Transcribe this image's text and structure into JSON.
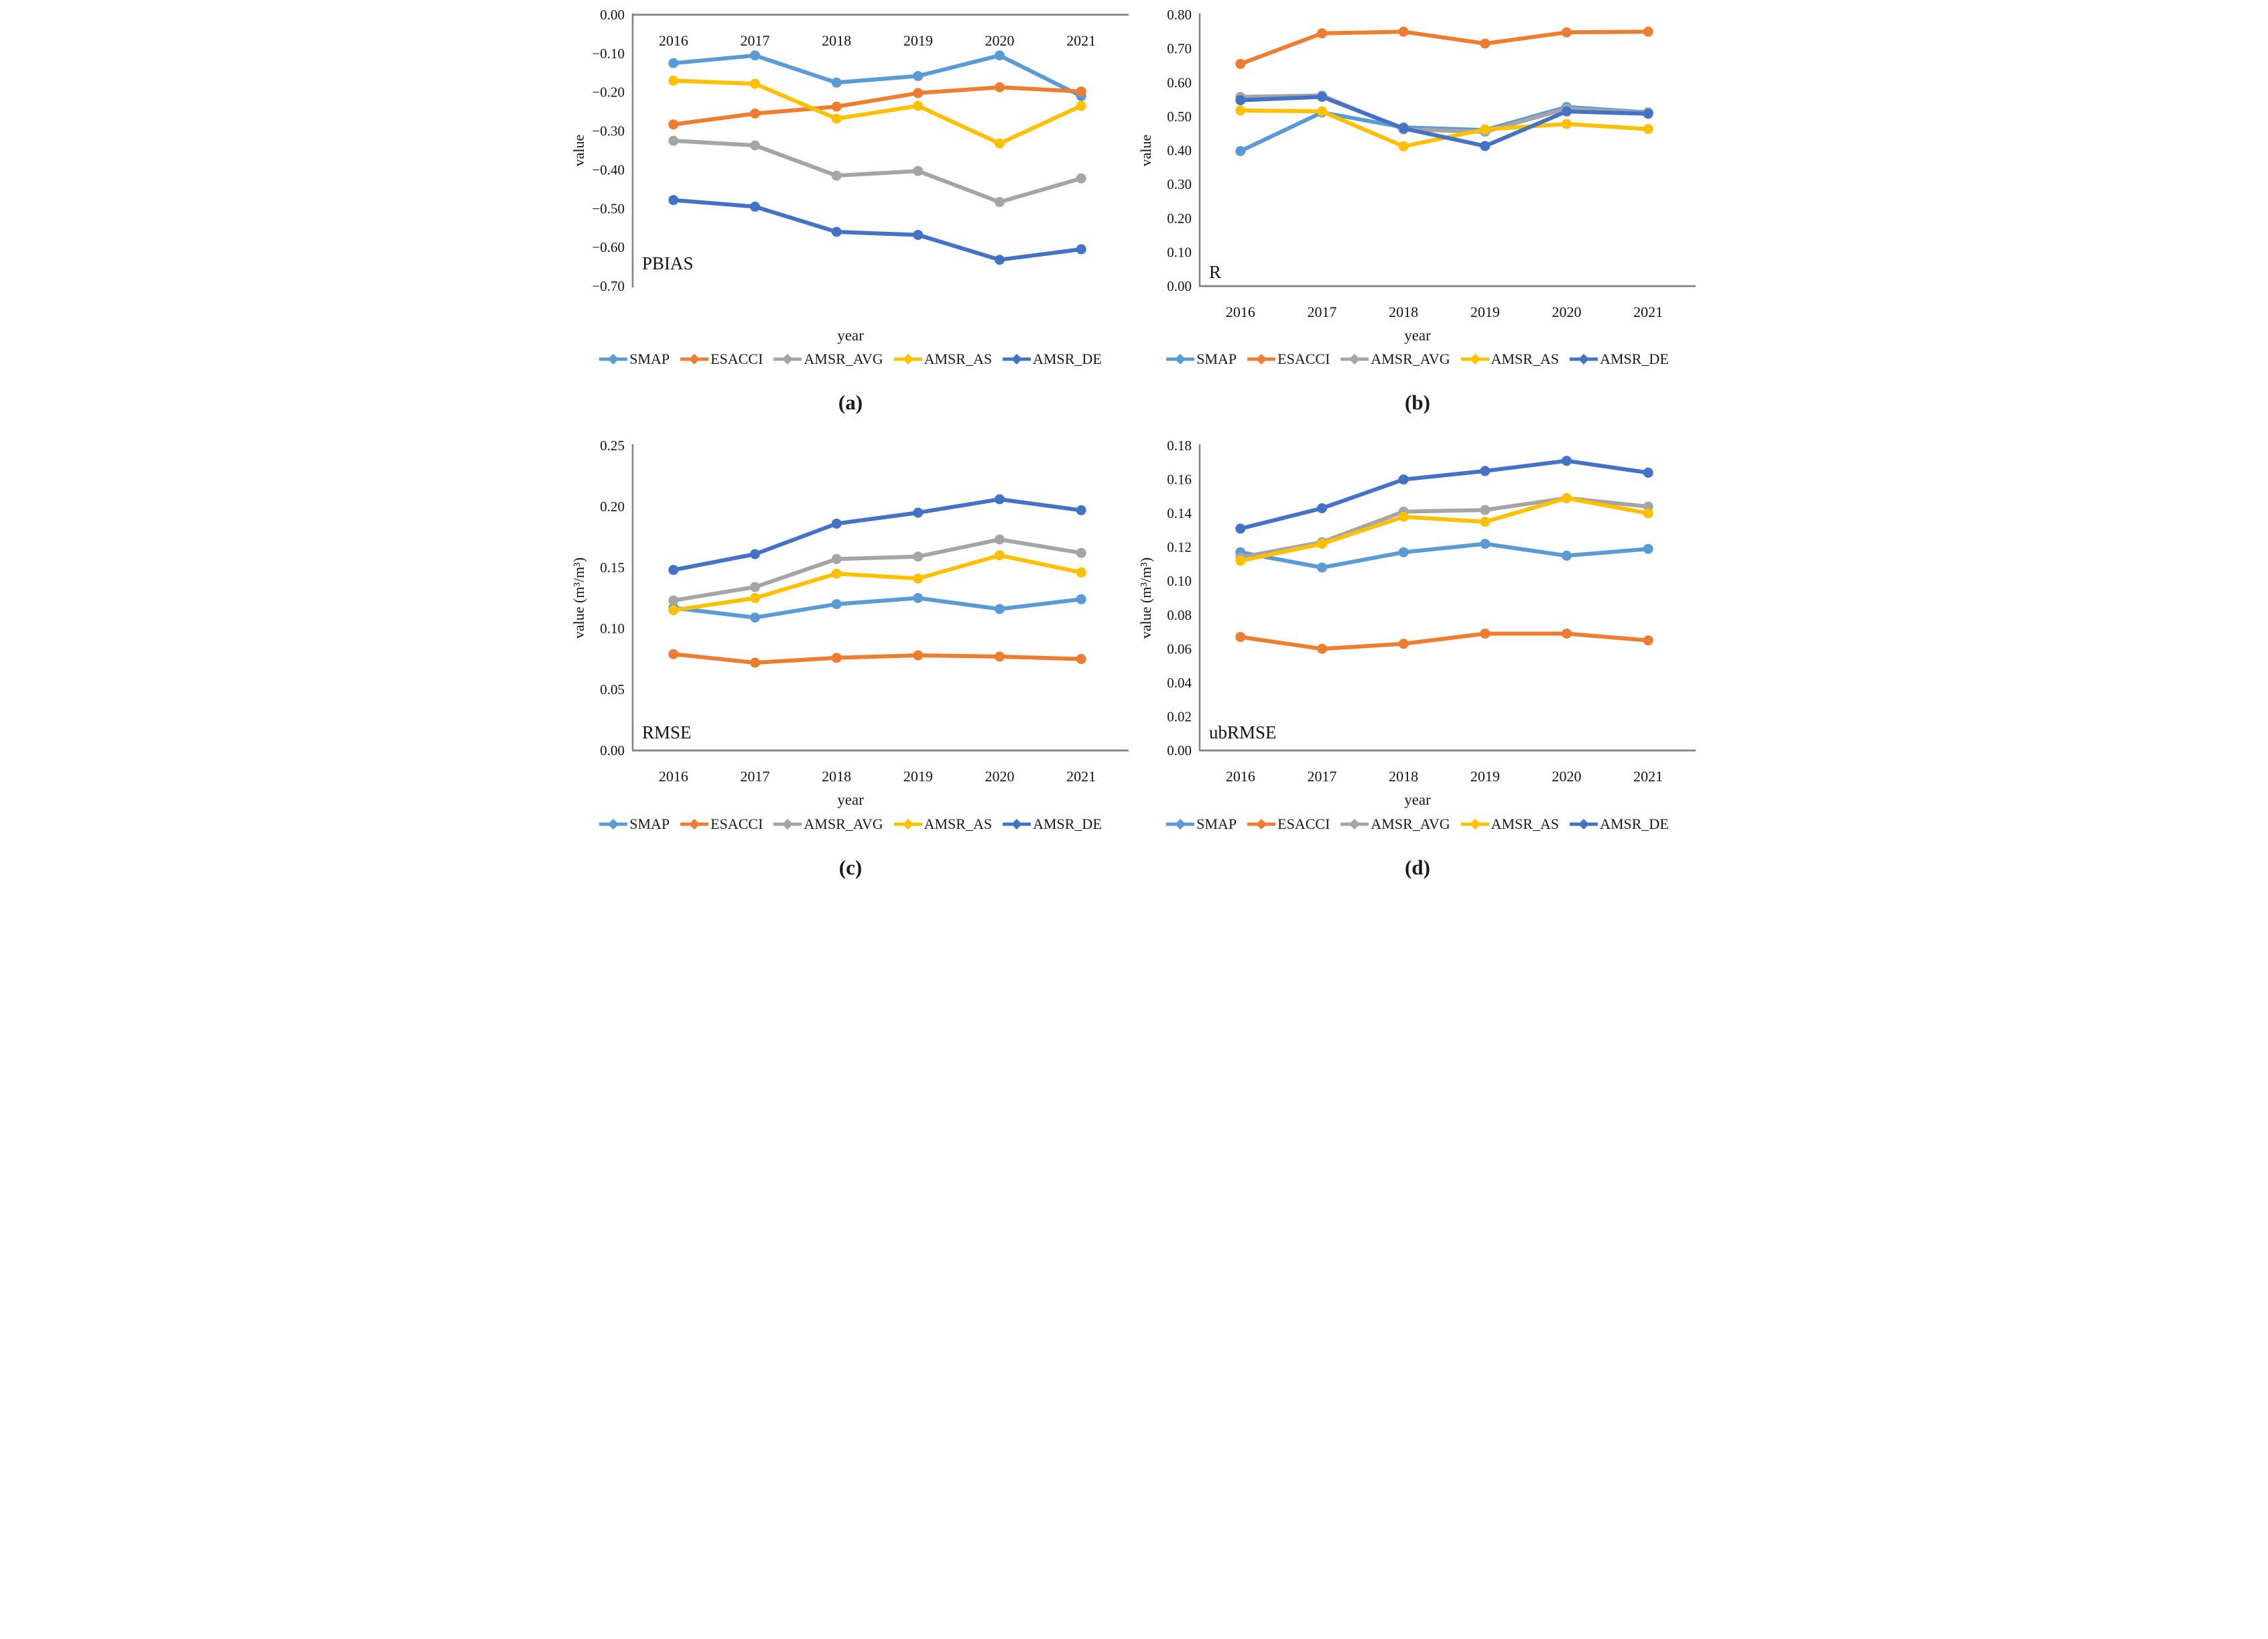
{
  "figure": {
    "xlabel": "year",
    "categories": [
      "2016",
      "2017",
      "2018",
      "2019",
      "2020",
      "2021"
    ],
    "axis_color": "#808080",
    "series_colors": {
      "SMAP": "#5B9BD5",
      "ESACCI": "#ED7D31",
      "AMSR_AVG": "#A5A5A5",
      "AMSR_AS": "#FFC000",
      "AMSR_DE": "#4472C4"
    }
  },
  "chart_data": [
    {
      "type": "line",
      "panel": "a",
      "caption": "(a)",
      "title": "PBIAS",
      "xlabel": "year",
      "ylabel": "value",
      "axis_side": "top",
      "legend_position": "bottom",
      "grid": false,
      "ylim": [
        -0.7,
        0.0
      ],
      "categories": [
        "2016",
        "2017",
        "2018",
        "2019",
        "2020",
        "2021"
      ],
      "ytick_values": [
        0.0,
        -0.1,
        -0.2,
        -0.3,
        -0.4,
        -0.5,
        -0.6,
        -0.7
      ],
      "ytick_labels": [
        "0.00",
        "−0.10",
        "−0.20",
        "−0.30",
        "−0.40",
        "−0.50",
        "−0.60",
        "−0.70"
      ],
      "series": [
        {
          "name": "SMAP",
          "color": "#5B9BD5",
          "values": [
            -0.125,
            -0.105,
            -0.175,
            -0.158,
            -0.105,
            -0.21
          ]
        },
        {
          "name": "ESACCI",
          "color": "#ED7D31",
          "values": [
            -0.283,
            -0.255,
            -0.237,
            -0.202,
            -0.187,
            -0.198
          ]
        },
        {
          "name": "AMSR_AVG",
          "color": "#A5A5A5",
          "values": [
            -0.325,
            -0.337,
            -0.415,
            -0.403,
            -0.483,
            -0.422
          ]
        },
        {
          "name": "AMSR_AS",
          "color": "#FFC000",
          "values": [
            -0.17,
            -0.178,
            -0.268,
            -0.235,
            -0.332,
            -0.235
          ]
        },
        {
          "name": "AMSR_DE",
          "color": "#4472C4",
          "values": [
            -0.478,
            -0.495,
            -0.56,
            -0.568,
            -0.632,
            -0.605
          ]
        }
      ]
    },
    {
      "type": "line",
      "panel": "b",
      "caption": "(b)",
      "title": "R",
      "xlabel": "year",
      "ylabel": "value",
      "axis_side": "bottom",
      "legend_position": "bottom",
      "grid": false,
      "ylim": [
        0.0,
        0.8
      ],
      "categories": [
        "2016",
        "2017",
        "2018",
        "2019",
        "2020",
        "2021"
      ],
      "ytick_values": [
        0.8,
        0.7,
        0.6,
        0.5,
        0.4,
        0.3,
        0.2,
        0.1,
        0.0
      ],
      "ytick_labels": [
        "0.80",
        "0.70",
        "0.60",
        "0.50",
        "0.40",
        "0.30",
        "0.20",
        "0.10",
        "0.00"
      ],
      "series": [
        {
          "name": "SMAP",
          "color": "#5B9BD5",
          "values": [
            0.398,
            0.512,
            0.468,
            0.46,
            0.528,
            0.512
          ]
        },
        {
          "name": "ESACCI",
          "color": "#ED7D31",
          "values": [
            0.655,
            0.745,
            0.75,
            0.715,
            0.748,
            0.75
          ]
        },
        {
          "name": "AMSR_AVG",
          "color": "#A5A5A5",
          "values": [
            0.558,
            0.562,
            0.462,
            0.455,
            0.523,
            0.51
          ]
        },
        {
          "name": "AMSR_AS",
          "color": "#FFC000",
          "values": [
            0.518,
            0.515,
            0.412,
            0.462,
            0.478,
            0.463
          ]
        },
        {
          "name": "AMSR_DE",
          "color": "#4472C4",
          "values": [
            0.548,
            0.558,
            0.465,
            0.413,
            0.515,
            0.508
          ]
        }
      ]
    },
    {
      "type": "line",
      "panel": "c",
      "caption": "(c)",
      "title": "RMSE",
      "xlabel": "year",
      "ylabel": "value (m³/m³)",
      "axis_side": "bottom",
      "legend_position": "bottom",
      "grid": false,
      "ylim": [
        0.0,
        0.25
      ],
      "categories": [
        "2016",
        "2017",
        "2018",
        "2019",
        "2020",
        "2021"
      ],
      "ytick_values": [
        0.25,
        0.2,
        0.15,
        0.1,
        0.05,
        0.0
      ],
      "ytick_labels": [
        "0.25",
        "0.20",
        "0.15",
        "0.10",
        "0.05",
        "0.00"
      ],
      "series": [
        {
          "name": "SMAP",
          "color": "#5B9BD5",
          "values": [
            0.117,
            0.109,
            0.12,
            0.125,
            0.116,
            0.124
          ]
        },
        {
          "name": "ESACCI",
          "color": "#ED7D31",
          "values": [
            0.079,
            0.072,
            0.076,
            0.078,
            0.077,
            0.075
          ]
        },
        {
          "name": "AMSR_AVG",
          "color": "#A5A5A5",
          "values": [
            0.123,
            0.134,
            0.157,
            0.159,
            0.173,
            0.162
          ]
        },
        {
          "name": "AMSR_AS",
          "color": "#FFC000",
          "values": [
            0.115,
            0.125,
            0.145,
            0.141,
            0.16,
            0.146
          ]
        },
        {
          "name": "AMSR_DE",
          "color": "#4472C4",
          "values": [
            0.148,
            0.161,
            0.186,
            0.195,
            0.206,
            0.197
          ]
        }
      ]
    },
    {
      "type": "line",
      "panel": "d",
      "caption": "(d)",
      "title": "ubRMSE",
      "xlabel": "year",
      "ylabel": "value (m³/m³)",
      "axis_side": "bottom",
      "legend_position": "bottom",
      "grid": false,
      "ylim": [
        0.0,
        0.18
      ],
      "categories": [
        "2016",
        "2017",
        "2018",
        "2019",
        "2020",
        "2021"
      ],
      "ytick_values": [
        0.18,
        0.16,
        0.14,
        0.12,
        0.1,
        0.08,
        0.06,
        0.04,
        0.02,
        0.0
      ],
      "ytick_labels": [
        "0.18",
        "0.16",
        "0.14",
        "0.12",
        "0.10",
        "0.08",
        "0.06",
        "0.04",
        "0.02",
        "0.00"
      ],
      "series": [
        {
          "name": "SMAP",
          "color": "#5B9BD5",
          "values": [
            0.117,
            0.108,
            0.117,
            0.122,
            0.115,
            0.119
          ]
        },
        {
          "name": "ESACCI",
          "color": "#ED7D31",
          "values": [
            0.067,
            0.06,
            0.063,
            0.069,
            0.069,
            0.065
          ]
        },
        {
          "name": "AMSR_AVG",
          "color": "#A5A5A5",
          "values": [
            0.114,
            0.123,
            0.141,
            0.142,
            0.149,
            0.144
          ]
        },
        {
          "name": "AMSR_AS",
          "color": "#FFC000",
          "values": [
            0.112,
            0.122,
            0.138,
            0.135,
            0.149,
            0.14
          ]
        },
        {
          "name": "AMSR_DE",
          "color": "#4472C4",
          "values": [
            0.131,
            0.143,
            0.16,
            0.165,
            0.171,
            0.164
          ]
        }
      ]
    }
  ]
}
